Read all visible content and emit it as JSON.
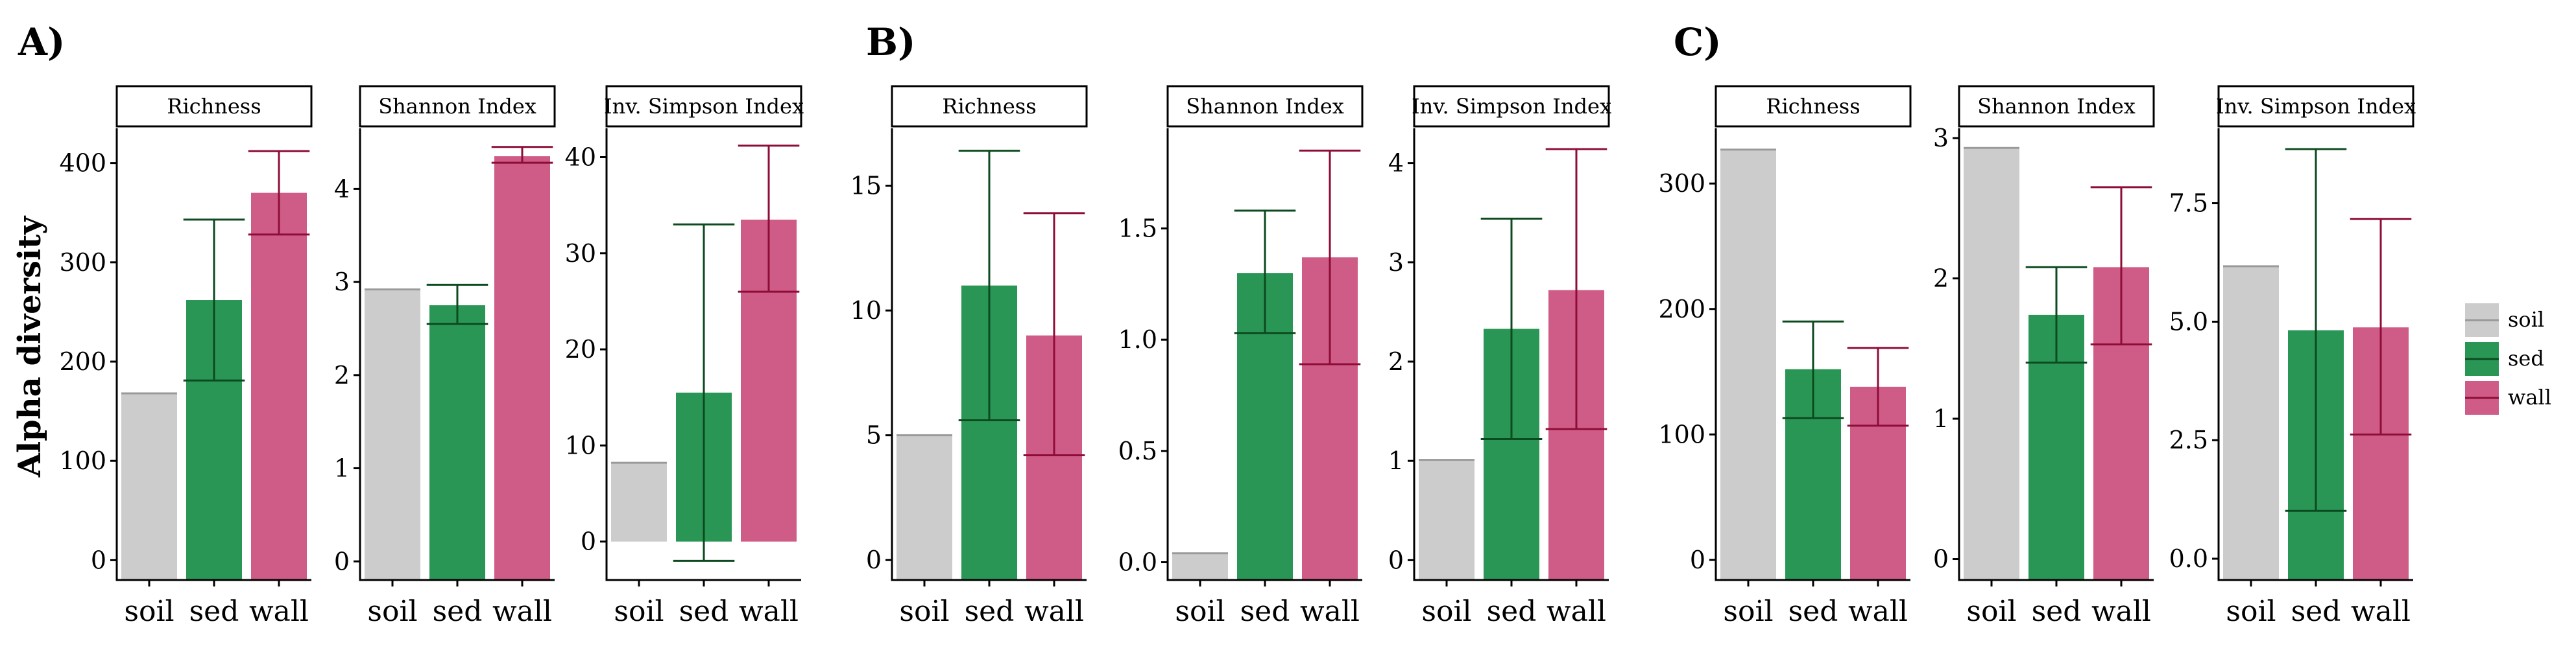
{
  "chart_data": [
    {
      "type": "bar",
      "panel_label": "A)",
      "ylabel": "Alpha diversity",
      "facets": [
        {
          "title": "Richness",
          "categories": [
            "soil",
            "sed",
            "wall"
          ],
          "values": [
            168,
            262,
            370
          ],
          "error_low": [
            168,
            181,
            328
          ],
          "error_high": [
            168,
            343,
            412
          ],
          "ylim": [
            -20,
            435
          ],
          "yticks": [
            {
              "v": 0,
              "label": "0"
            },
            {
              "v": 100,
              "label": "100"
            },
            {
              "v": 200,
              "label": "200"
            },
            {
              "v": 300,
              "label": "300"
            },
            {
              "v": 400,
              "label": "400"
            }
          ]
        },
        {
          "title": "Shannon Index",
          "categories": [
            "soil",
            "sed",
            "wall"
          ],
          "values": [
            2.92,
            2.75,
            4.35
          ],
          "error_low": [
            2.92,
            2.55,
            4.28
          ],
          "error_high": [
            2.92,
            2.97,
            4.45
          ],
          "ylim": [
            -0.2,
            4.65
          ],
          "yticks": [
            {
              "v": 0,
              "label": "0"
            },
            {
              "v": 1,
              "label": "1"
            },
            {
              "v": 2,
              "label": "2"
            },
            {
              "v": 3,
              "label": "3"
            },
            {
              "v": 4,
              "label": "4"
            }
          ]
        },
        {
          "title": "Inv. Simpson Index",
          "categories": [
            "soil",
            "sed",
            "wall"
          ],
          "values": [
            8.2,
            15.5,
            33.5
          ],
          "error_low": [
            8.2,
            -2.0,
            26.0
          ],
          "error_high": [
            8.2,
            33.0,
            41.2
          ],
          "bar_base": 0,
          "ylim": [
            -4.0,
            43.0
          ],
          "yticks": [
            {
              "v": 0,
              "label": "0"
            },
            {
              "v": 10,
              "label": "10"
            },
            {
              "v": 20,
              "label": "20"
            },
            {
              "v": 30,
              "label": "30"
            },
            {
              "v": 40,
              "label": "40"
            }
          ]
        }
      ]
    },
    {
      "type": "bar",
      "panel_label": "B)",
      "facets": [
        {
          "title": "Richness",
          "categories": [
            "soil",
            "sed",
            "wall"
          ],
          "values": [
            5.0,
            11.0,
            9.0
          ],
          "error_low": [
            5.0,
            5.6,
            4.2
          ],
          "error_high": [
            5.0,
            16.4,
            13.9
          ],
          "ylim": [
            -0.8,
            17.3
          ],
          "yticks": [
            {
              "v": 0,
              "label": "0"
            },
            {
              "v": 5,
              "label": "5"
            },
            {
              "v": 10,
              "label": "10"
            },
            {
              "v": 15,
              "label": "15"
            }
          ]
        },
        {
          "title": "Shannon Index",
          "categories": [
            "soil",
            "sed",
            "wall"
          ],
          "values": [
            0.04,
            1.3,
            1.37
          ],
          "error_low": [
            0.04,
            1.03,
            0.89
          ],
          "error_high": [
            0.04,
            1.58,
            1.85
          ],
          "ylim": [
            -0.08,
            1.95
          ],
          "yticks": [
            {
              "v": 0,
              "label": "0.0"
            },
            {
              "v": 0.5,
              "label": "0.5"
            },
            {
              "v": 1.0,
              "label": "1.0"
            },
            {
              "v": 1.5,
              "label": "1.5"
            }
          ]
        },
        {
          "title": "Inv. Simpson Index",
          "categories": [
            "soil",
            "sed",
            "wall"
          ],
          "values": [
            1.01,
            2.33,
            2.72
          ],
          "error_low": [
            1.01,
            1.22,
            1.32
          ],
          "error_high": [
            1.01,
            3.44,
            4.14
          ],
          "ylim": [
            -0.2,
            4.35
          ],
          "yticks": [
            {
              "v": 0,
              "label": "0"
            },
            {
              "v": 1,
              "label": "1"
            },
            {
              "v": 2,
              "label": "2"
            },
            {
              "v": 3,
              "label": "3"
            },
            {
              "v": 4,
              "label": "4"
            }
          ]
        }
      ]
    },
    {
      "type": "bar",
      "panel_label": "C)",
      "facets": [
        {
          "title": "Richness",
          "categories": [
            "soil",
            "sed",
            "wall"
          ],
          "values": [
            327,
            152,
            138
          ],
          "error_low": [
            327,
            113,
            107
          ],
          "error_high": [
            327,
            190,
            169
          ],
          "ylim": [
            -16,
            344
          ],
          "yticks": [
            {
              "v": 0,
              "label": "0"
            },
            {
              "v": 100,
              "label": "100"
            },
            {
              "v": 200,
              "label": "200"
            },
            {
              "v": 300,
              "label": "300"
            }
          ]
        },
        {
          "title": "Shannon Index",
          "categories": [
            "soil",
            "sed",
            "wall"
          ],
          "values": [
            2.93,
            1.74,
            2.08
          ],
          "error_low": [
            2.93,
            1.4,
            1.53
          ],
          "error_high": [
            2.93,
            2.08,
            2.65
          ],
          "ylim": [
            -0.15,
            3.07
          ],
          "yticks": [
            {
              "v": 0,
              "label": "0"
            },
            {
              "v": 1,
              "label": "1"
            },
            {
              "v": 2,
              "label": "2"
            },
            {
              "v": 3,
              "label": "3"
            }
          ]
        },
        {
          "title": "Inv. Simpson Index",
          "categories": [
            "soil",
            "sed",
            "wall"
          ],
          "values": [
            6.17,
            4.82,
            4.88
          ],
          "error_low": [
            6.17,
            1.01,
            2.62
          ],
          "error_high": [
            6.17,
            8.64,
            7.17
          ],
          "ylim": [
            -0.45,
            9.08
          ],
          "yticks": [
            {
              "v": 0,
              "label": "0.0"
            },
            {
              "v": 2.5,
              "label": "2.5"
            },
            {
              "v": 5.0,
              "label": "5.0"
            },
            {
              "v": 7.5,
              "label": "7.5"
            }
          ]
        }
      ]
    }
  ],
  "legend": [
    {
      "label": "soil",
      "fill": "#cccccc",
      "line": "#9a9a9a"
    },
    {
      "label": "sed",
      "fill": "#2a9656",
      "line": "#0c4a1f"
    },
    {
      "label": "wall",
      "fill": "#cf5c86",
      "line": "#8e0d38"
    }
  ],
  "colors": {
    "soil_fill": "#cccccc",
    "soil_line": "#9a9a9a",
    "sed_fill": "#2a9656",
    "sed_line": "#0c4a1f",
    "wall_fill": "#cf5c86",
    "wall_line": "#8e0d38"
  }
}
